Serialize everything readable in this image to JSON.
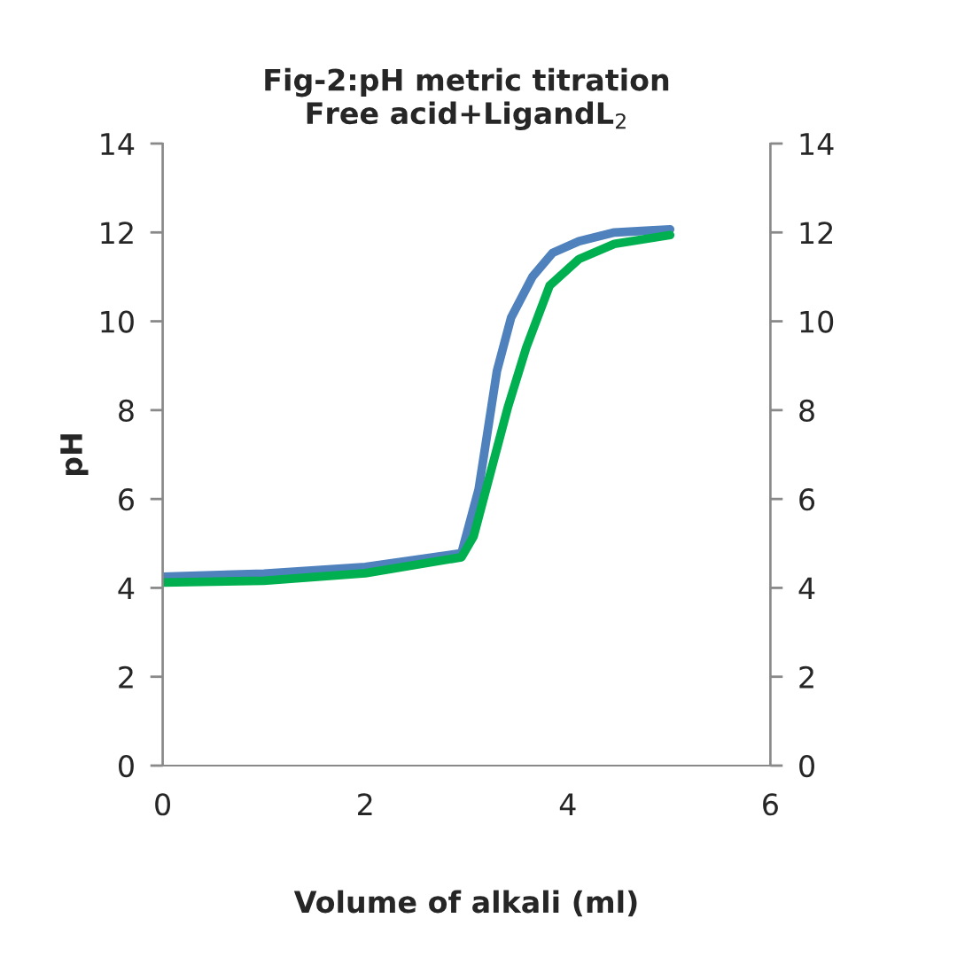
{
  "chart_data": {
    "type": "line",
    "title": "Fig-2:pH metric titration\nFree acid+LigandL$_{2}$",
    "xlabel": "Volume of alkali (ml)",
    "ylabel": "pH",
    "xlim": [
      0,
      6
    ],
    "xticks": [
      0,
      2,
      4,
      6
    ],
    "ylim": [
      0,
      14
    ],
    "yticks": [
      0,
      2,
      4,
      6,
      8,
      10,
      12,
      14
    ],
    "y2lim": [
      0,
      14
    ],
    "y2ticks": [
      0,
      2,
      4,
      6,
      8,
      10,
      12,
      14
    ],
    "grid": false,
    "legend": false,
    "marker": "none",
    "line_style": "solid",
    "series": [
      {
        "color": "#4f81bd",
        "x": [
          0,
          1,
          2,
          2.95,
          3.12,
          3.3,
          3.44,
          3.65,
          3.85,
          4.11,
          4.46,
          5.01
        ],
        "values": [
          4.25,
          4.32,
          4.47,
          4.78,
          6.22,
          8.88,
          10.08,
          11.0,
          11.54,
          11.8,
          12.0,
          12.07
        ]
      },
      {
        "color": "#00b050",
        "x": [
          0,
          1,
          2,
          2.95,
          3.07,
          3.24,
          3.41,
          3.59,
          3.82,
          4.11,
          4.46,
          5.01
        ],
        "values": [
          4.12,
          4.16,
          4.33,
          4.69,
          5.16,
          6.62,
          8.08,
          9.41,
          10.8,
          11.4,
          11.74,
          11.94
        ]
      }
    ]
  }
}
